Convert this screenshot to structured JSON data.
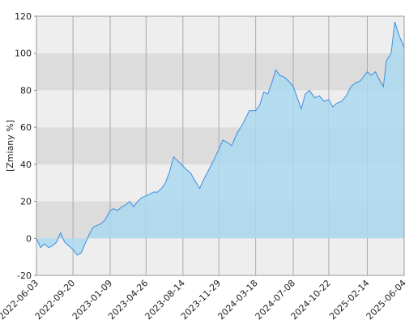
{
  "chart_data": {
    "type": "area",
    "y_label": "[Zmiany %]",
    "x": [
      "2022-06-03",
      "2022-06-15",
      "2022-06-27",
      "2022-07-09",
      "2022-07-21",
      "2022-08-02",
      "2022-08-14",
      "2022-08-26",
      "2022-09-07",
      "2022-09-20",
      "2022-10-02",
      "2022-10-14",
      "2022-10-26",
      "2022-11-07",
      "2022-11-19",
      "2022-12-01",
      "2022-12-13",
      "2022-12-25",
      "2023-01-09",
      "2023-01-19",
      "2023-01-31",
      "2023-02-12",
      "2023-02-24",
      "2023-03-08",
      "2023-03-20",
      "2023-04-01",
      "2023-04-13",
      "2023-04-26",
      "2023-05-08",
      "2023-05-18",
      "2023-05-30",
      "2023-06-11",
      "2023-06-23",
      "2023-07-05",
      "2023-07-17",
      "2023-07-29",
      "2023-08-14",
      "2023-08-26",
      "2023-09-07",
      "2023-09-19",
      "2023-10-03",
      "2023-10-13",
      "2023-10-27",
      "2023-11-13",
      "2023-11-29",
      "2023-12-11",
      "2023-12-23",
      "2024-01-06",
      "2024-01-23",
      "2024-02-09",
      "2024-02-28",
      "2024-03-18",
      "2024-03-30",
      "2024-04-11",
      "2024-04-23",
      "2024-05-05",
      "2024-05-17",
      "2024-05-29",
      "2024-06-12",
      "2024-06-24",
      "2024-07-08",
      "2024-07-20",
      "2024-08-01",
      "2024-08-13",
      "2024-08-25",
      "2024-09-10",
      "2024-09-24",
      "2024-10-08",
      "2024-10-22",
      "2024-11-03",
      "2024-11-15",
      "2024-11-29",
      "2024-12-13",
      "2024-12-27",
      "2025-01-10",
      "2025-01-24",
      "2025-02-14",
      "2025-02-26",
      "2025-03-10",
      "2025-03-24",
      "2025-04-03",
      "2025-04-12",
      "2025-04-26",
      "2025-05-07",
      "2025-05-19",
      "2025-06-04"
    ],
    "series": [
      {
        "color": "#3d8fdd",
        "fill": "#aad8ee",
        "values": [
          0,
          -5,
          -3,
          -5,
          -4,
          -2,
          3,
          -2,
          -4,
          -6,
          -9,
          -8,
          -3,
          2,
          6,
          7,
          8,
          10,
          15,
          16,
          15,
          17,
          18,
          20,
          17,
          20,
          22,
          23,
          24,
          25,
          25,
          27,
          30,
          36,
          44,
          42,
          39,
          37,
          35,
          31,
          27,
          31,
          36,
          42,
          48,
          53,
          52,
          50,
          57,
          62,
          69,
          69,
          72,
          79,
          78,
          84,
          91,
          88,
          87,
          85,
          82,
          76,
          70,
          78,
          80,
          76,
          77,
          74,
          75,
          71,
          73,
          74,
          77,
          82,
          84,
          85,
          90,
          88,
          90,
          85,
          82,
          96,
          100,
          117,
          110,
          103
        ]
      }
    ],
    "xlim": [
      "2022-06-03",
      "2025-06-04"
    ],
    "xticks": [
      "2022-06-03",
      "2022-09-20",
      "2023-01-09",
      "2023-04-26",
      "2023-08-14",
      "2023-11-29",
      "2024-03-18",
      "2024-07-08",
      "2024-10-22",
      "2025-02-14",
      "2025-06-04"
    ],
    "ylim": [
      -20,
      120
    ],
    "yticks": [
      -20,
      0,
      20,
      40,
      60,
      80,
      100,
      120
    ],
    "grid": true
  }
}
